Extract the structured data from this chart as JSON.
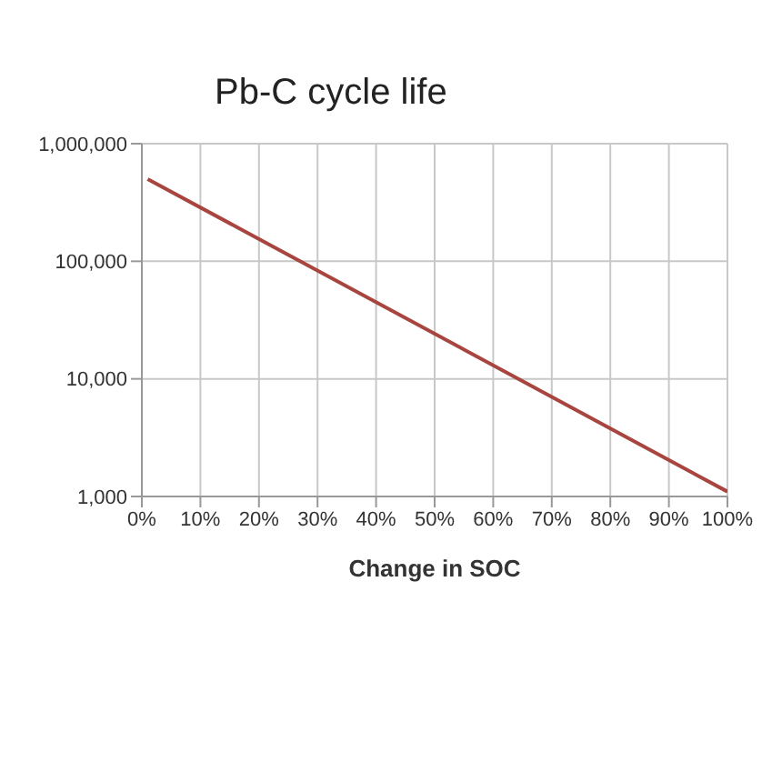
{
  "chart_data": {
    "type": "line",
    "title": "Pb-C cycle life",
    "xlabel": "Change in SOC",
    "series": [
      {
        "color": "#a8453f",
        "x": [
          1,
          100
        ],
        "values": [
          500000,
          1100
        ]
      }
    ],
    "xlim": [
      0,
      100
    ],
    "xticks": [
      {
        "value": 0,
        "label": "0%"
      },
      {
        "value": 10,
        "label": "10%"
      },
      {
        "value": 20,
        "label": "20%"
      },
      {
        "value": 30,
        "label": "30%"
      },
      {
        "value": 40,
        "label": "40%"
      },
      {
        "value": 50,
        "label": "50%"
      },
      {
        "value": 60,
        "label": "60%"
      },
      {
        "value": 70,
        "label": "70%"
      },
      {
        "value": 80,
        "label": "80%"
      },
      {
        "value": 90,
        "label": "90%"
      },
      {
        "value": 100,
        "label": "100%"
      }
    ],
    "ylim": [
      1000,
      1000000
    ],
    "yticks": [
      {
        "value": 1000,
        "label": "1,000"
      },
      {
        "value": 10000,
        "label": "10,000"
      },
      {
        "value": 100000,
        "label": "100,000"
      },
      {
        "value": 1000000,
        "label": "1,000,000"
      }
    ],
    "log": "y",
    "grid": true,
    "marker": "none",
    "line_style": "solid"
  }
}
